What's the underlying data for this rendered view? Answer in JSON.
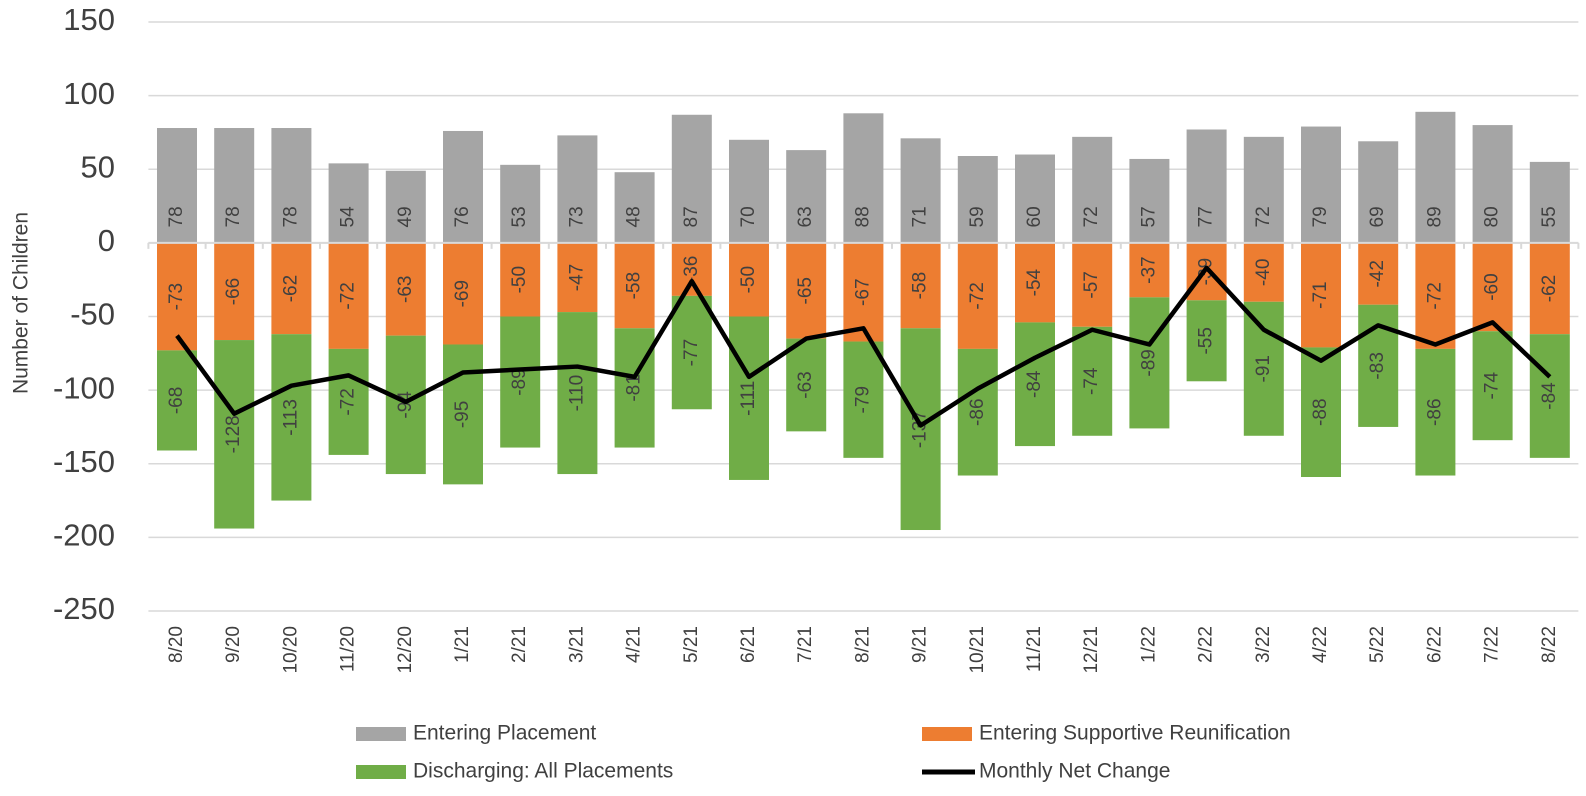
{
  "chart_data": {
    "type": "bar",
    "stacked": true,
    "y_label": "Number of Children",
    "categories": [
      "8/20",
      "9/20",
      "10/20",
      "11/20",
      "12/20",
      "1/21",
      "2/21",
      "3/21",
      "4/21",
      "5/21",
      "6/21",
      "7/21",
      "8/21",
      "9/21",
      "10/21",
      "11/21",
      "12/21",
      "1/22",
      "2/22",
      "3/22",
      "4/22",
      "5/22",
      "6/22",
      "7/22",
      "8/22"
    ],
    "series": [
      {
        "name": "Entering Placement",
        "color": "#a5a5a5",
        "type": "bar",
        "values": [
          78,
          78,
          78,
          54,
          49,
          76,
          53,
          73,
          48,
          87,
          70,
          63,
          88,
          71,
          59,
          60,
          72,
          57,
          77,
          72,
          79,
          69,
          89,
          80,
          55
        ]
      },
      {
        "name": "Entering Supportive Reunification",
        "color": "#ed7d31",
        "type": "bar",
        "values": [
          -73,
          -66,
          -62,
          -72,
          -63,
          -69,
          -50,
          -47,
          -58,
          -36,
          -50,
          -65,
          -67,
          -58,
          -72,
          -54,
          -57,
          -37,
          -39,
          -40,
          -71,
          -42,
          -72,
          -60,
          -62
        ]
      },
      {
        "name": "Discharging: All Placements",
        "color": "#70ad47",
        "type": "bar",
        "values": [
          -68,
          -128,
          -113,
          -72,
          -94,
          -95,
          -89,
          -110,
          -81,
          -77,
          -111,
          -63,
          -79,
          -137,
          -86,
          -84,
          -74,
          -89,
          -55,
          -91,
          -88,
          -83,
          -86,
          -74,
          -84
        ]
      },
      {
        "name": "Monthly Net Change",
        "color": "#000000",
        "type": "line",
        "values": [
          -63,
          -116,
          -97,
          -90,
          -108,
          -88,
          -86,
          -84,
          -91,
          -26,
          -91,
          -65,
          -58,
          -124,
          -99,
          -78,
          -59,
          -69,
          -17,
          -59,
          -80,
          -56,
          -69,
          -54,
          -91
        ]
      }
    ],
    "ylim": [
      -250,
      150
    ],
    "yticks": [
      -250,
      -200,
      -150,
      -100,
      -50,
      0,
      50,
      100,
      150
    ],
    "grid": true,
    "legend": "bottom"
  }
}
